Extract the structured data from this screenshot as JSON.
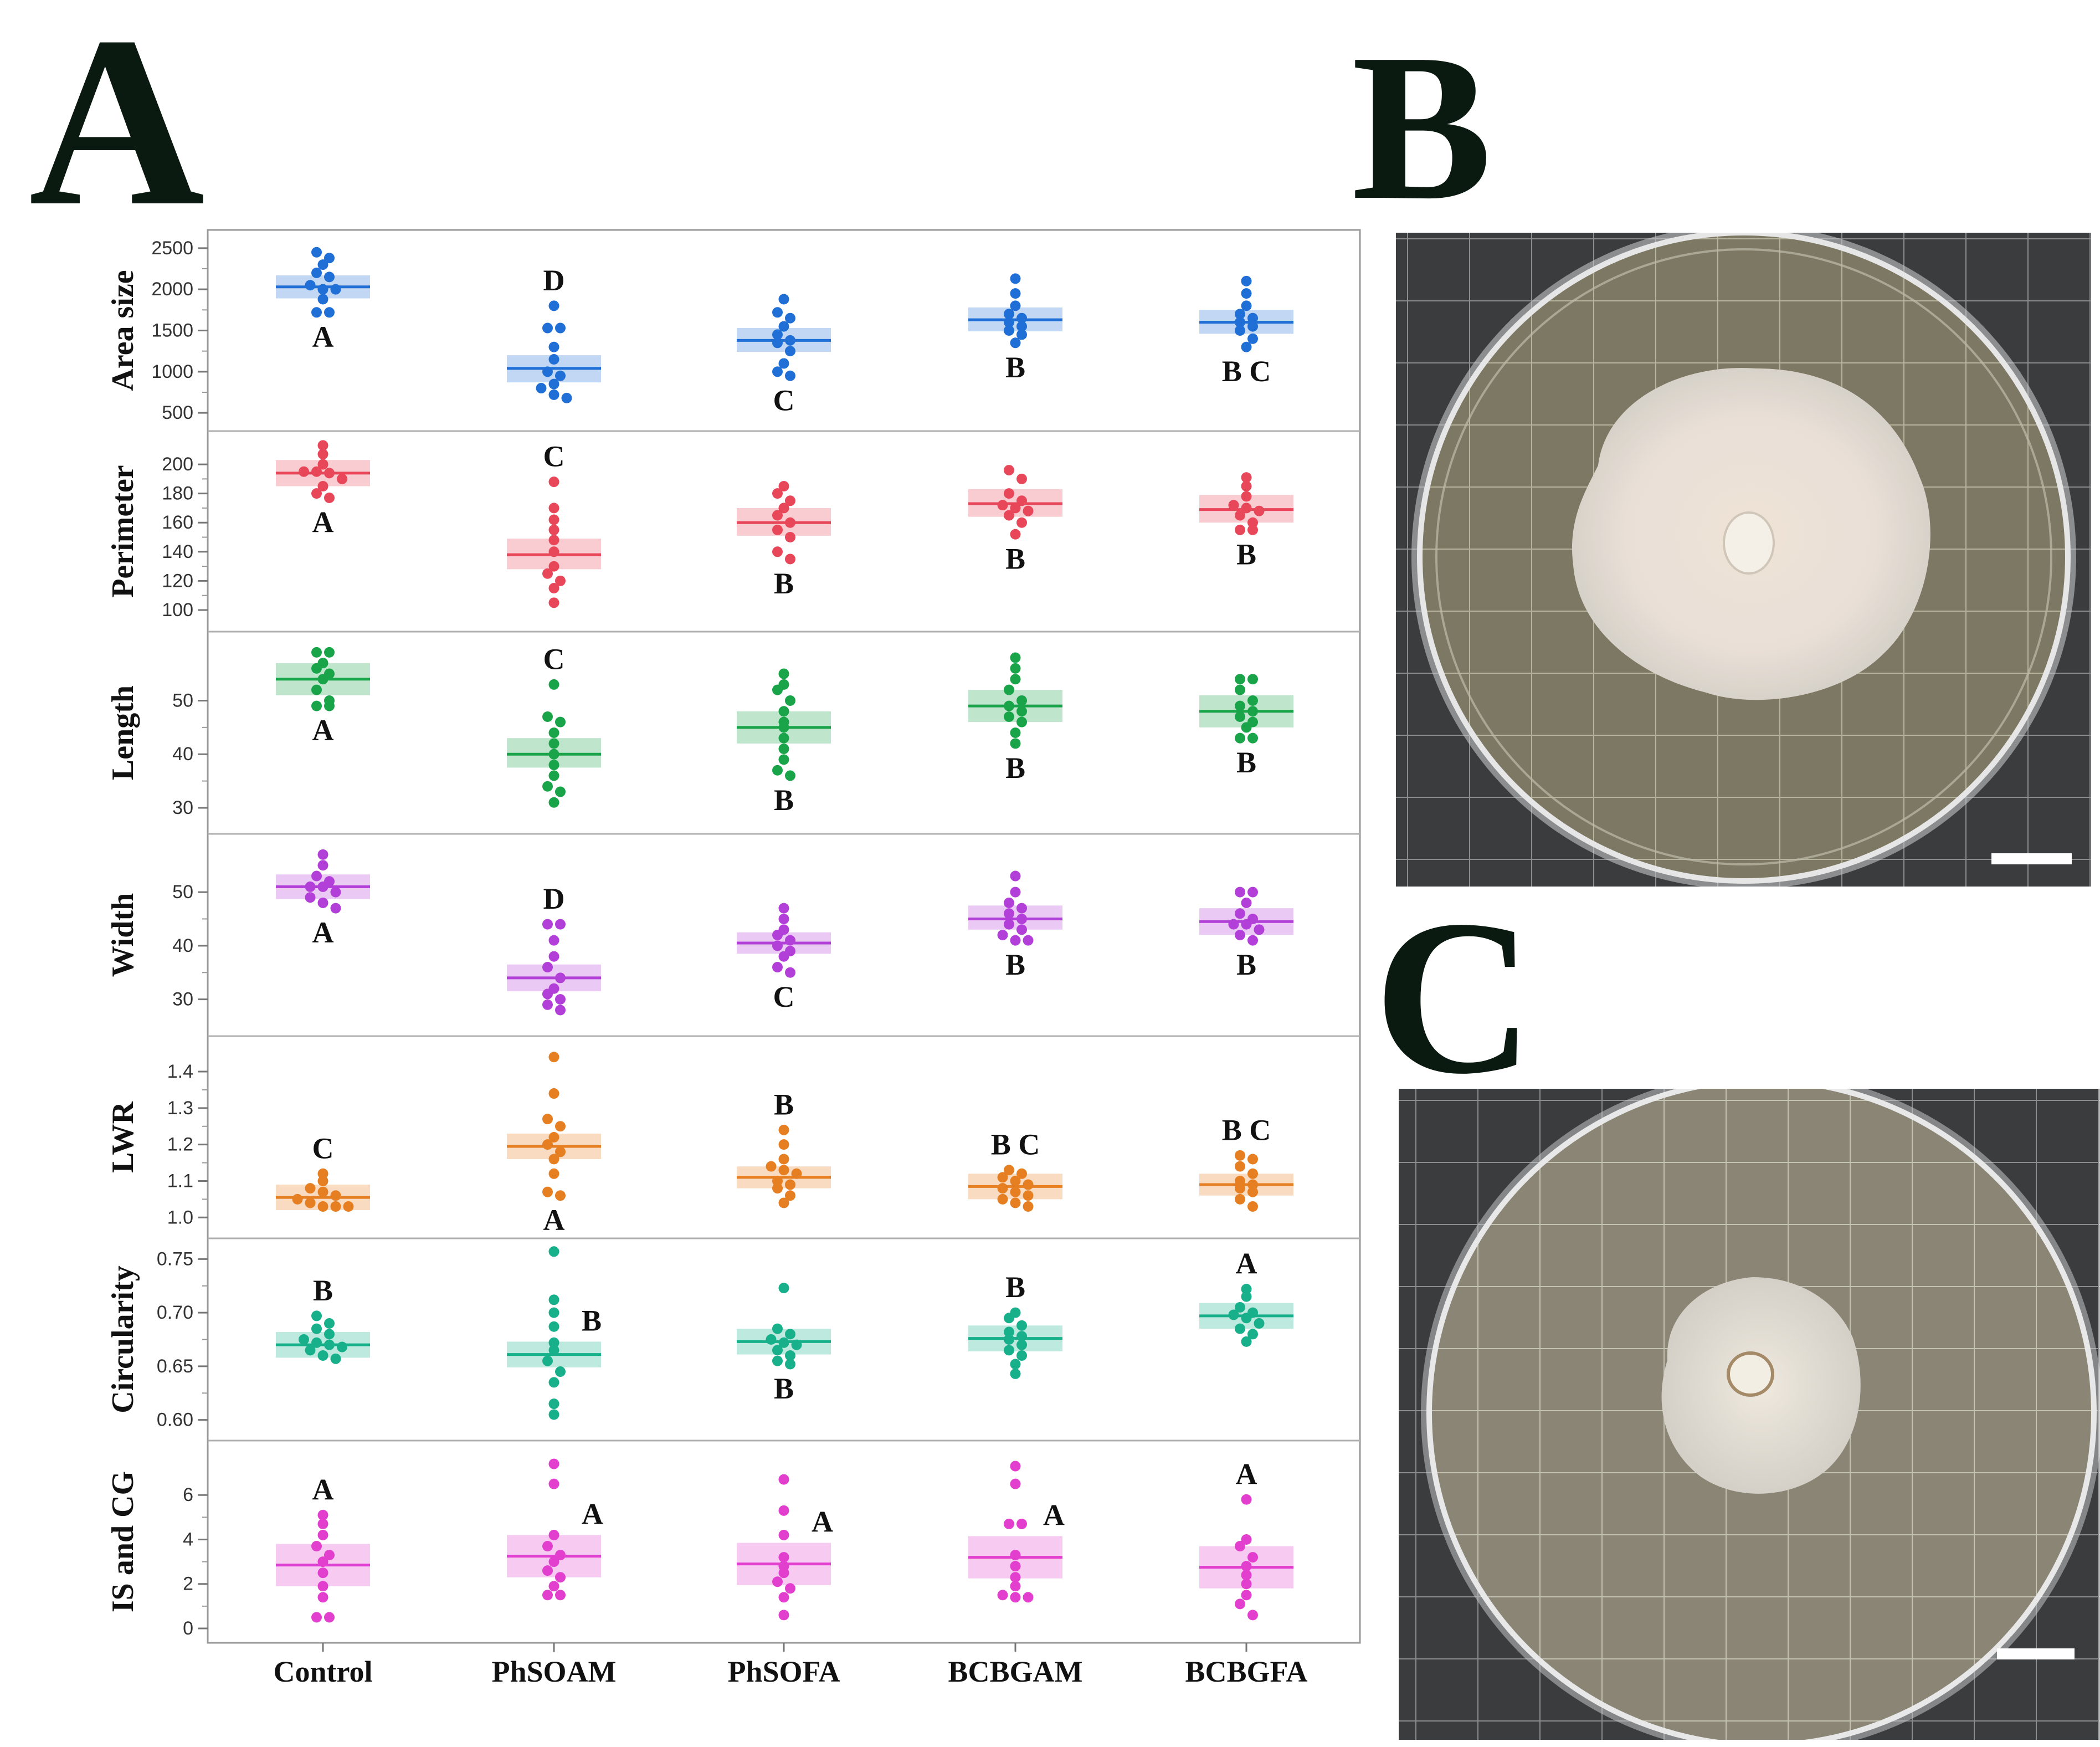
{
  "panel_letters": {
    "a": "A",
    "b": "B",
    "c": "C"
  },
  "colors": {
    "Area size": "#1f6fd6",
    "Perimeter": "#e8475a",
    "Length": "#1aa44a",
    "Width": "#b23fd8",
    "LWR": "#e67e22",
    "Circularity": "#17b08a",
    "IS and CG": "#e33fcf"
  },
  "chart_data": {
    "type": "scatter",
    "subtype": "grouped dot plot with mean line and confidence band, one row per trait",
    "categories": [
      "Control",
      "PhSOAM",
      "PhSOFA",
      "BCBGAM",
      "BCBGFA"
    ],
    "rows": [
      {
        "ylabel": "Area size",
        "yticks": [
          500,
          1000,
          1500,
          2000,
          2500
        ],
        "ylim": [
          400,
          2600
        ],
        "groups": [
          {
            "values": [
              2450,
              2380,
              2300,
              2200,
              2150,
              2050,
              2000,
              2000,
              1880,
              1720,
              1720
            ],
            "mean": 2030,
            "ci": [
              1890,
              2170
            ],
            "letter": "A",
            "letter_pos": "below"
          },
          {
            "values": [
              1800,
              1530,
              1530,
              1300,
              1150,
              1000,
              950,
              850,
              800,
              720,
              680
            ],
            "mean": 1040,
            "ci": [
              870,
              1200
            ],
            "letter": "D",
            "letter_pos": "above"
          },
          {
            "values": [
              1880,
              1720,
              1650,
              1550,
              1450,
              1380,
              1350,
              1250,
              1100,
              1000,
              950
            ],
            "mean": 1380,
            "ci": [
              1240,
              1530
            ],
            "letter": "C",
            "letter_pos": "below"
          },
          {
            "values": [
              2130,
              1950,
              1800,
              1700,
              1650,
              1600,
              1550,
              1500,
              1450,
              1350
            ],
            "mean": 1630,
            "ci": [
              1490,
              1780
            ],
            "letter": "B",
            "letter_pos": "below"
          },
          {
            "values": [
              2100,
              1950,
              1800,
              1700,
              1650,
              1600,
              1550,
              1500,
              1400,
              1300
            ],
            "mean": 1600,
            "ci": [
              1460,
              1750
            ],
            "letter": "B C",
            "letter_pos": "below"
          }
        ]
      },
      {
        "ylabel": "Perimeter",
        "yticks": [
          100,
          120,
          140,
          160,
          180,
          200
        ],
        "ylim": [
          92,
          216
        ],
        "groups": [
          {
            "values": [
              213,
              207,
              200,
              195,
              195,
              194,
              190,
              185,
              180,
              177
            ],
            "mean": 194,
            "ci": [
              185,
              203
            ],
            "letter": "A",
            "letter_pos": "below"
          },
          {
            "values": [
              188,
              170,
              162,
              155,
              148,
              140,
              130,
              125,
              120,
              115,
              105
            ],
            "mean": 138,
            "ci": [
              128,
              149
            ],
            "letter": "C",
            "letter_pos": "above"
          },
          {
            "values": [
              185,
              180,
              175,
              170,
              165,
              160,
              155,
              150,
              140,
              135
            ],
            "mean": 160,
            "ci": [
              151,
              170
            ],
            "letter": "B",
            "letter_pos": "below"
          },
          {
            "values": [
              196,
              190,
              180,
              175,
              172,
              170,
              168,
              165,
              160,
              152
            ],
            "mean": 173,
            "ci": [
              164,
              183
            ],
            "letter": "B",
            "letter_pos": "below"
          },
          {
            "values": [
              191,
              185,
              178,
              172,
              170,
              168,
              165,
              160,
              155,
              155
            ],
            "mean": 169,
            "ci": [
              160,
              179
            ],
            "letter": "B",
            "letter_pos": "below"
          }
        ]
      },
      {
        "ylabel": "Length",
        "yticks": [
          30,
          40,
          50
        ],
        "ylim": [
          27,
          61
        ],
        "groups": [
          {
            "values": [
              59,
              59,
              57,
              56,
              55,
              54,
              52,
              50,
              49,
              49
            ],
            "mean": 54,
            "ci": [
              51,
              57
            ],
            "letter": "A",
            "letter_pos": "below"
          },
          {
            "values": [
              53,
              47,
              46,
              44,
              42,
              40,
              38,
              36,
              34,
              33,
              31
            ],
            "mean": 40,
            "ci": [
              37.5,
              43
            ],
            "letter": "C",
            "letter_pos": "above"
          },
          {
            "values": [
              55,
              53,
              52,
              50,
              48,
              46,
              45,
              43,
              41,
              39,
              37,
              36
            ],
            "mean": 45,
            "ci": [
              42,
              48
            ],
            "letter": "B",
            "letter_pos": "below"
          },
          {
            "values": [
              58,
              56,
              54,
              52,
              50,
              49,
              48,
              47,
              46,
              44,
              42
            ],
            "mean": 49,
            "ci": [
              46,
              52
            ],
            "letter": "B",
            "letter_pos": "below"
          },
          {
            "values": [
              54,
              54,
              52,
              50,
              49,
              48,
              47,
              46,
              45,
              43,
              43
            ],
            "mean": 48,
            "ci": [
              45,
              51
            ],
            "letter": "B",
            "letter_pos": "below"
          }
        ]
      },
      {
        "ylabel": "Width",
        "yticks": [
          30,
          40,
          50
        ],
        "ylim": [
          25,
          59
        ],
        "groups": [
          {
            "values": [
              57,
              55,
              53,
              52,
              51,
              51,
              50,
              49,
              48,
              47
            ],
            "mean": 51,
            "ci": [
              48.7,
              53.3
            ],
            "letter": "A",
            "letter_pos": "below"
          },
          {
            "values": [
              44,
              44,
              41,
              38,
              36,
              34,
              32,
              31,
              30,
              29,
              28
            ],
            "mean": 34,
            "ci": [
              31.5,
              36.5
            ],
            "letter": "D",
            "letter_pos": "above"
          },
          {
            "values": [
              47,
              45,
              43,
              42,
              41,
              40,
              39,
              38,
              36,
              35
            ],
            "mean": 40.5,
            "ci": [
              38.5,
              42.5
            ],
            "letter": "C",
            "letter_pos": "below"
          },
          {
            "values": [
              53,
              50,
              48,
              47,
              46,
              45,
              44,
              43,
              42,
              41,
              41
            ],
            "mean": 45,
            "ci": [
              43,
              47.5
            ],
            "letter": "B",
            "letter_pos": "below"
          },
          {
            "values": [
              50,
              50,
              48,
              46,
              45,
              44,
              44,
              43,
              42,
              41
            ],
            "mean": 44.5,
            "ci": [
              42,
              47
            ],
            "letter": "B",
            "letter_pos": "below"
          }
        ]
      },
      {
        "ylabel": "LWR",
        "yticks": [
          1.0,
          1.1,
          1.2,
          1.3,
          1.4
        ],
        "yticklabels": [
          "1.0",
          "1.1",
          "1.2",
          "1.3",
          "1.4"
        ],
        "ylim": [
          0.97,
          1.47
        ],
        "groups": [
          {
            "values": [
              1.12,
              1.1,
              1.08,
              1.07,
              1.06,
              1.05,
              1.04,
              1.03,
              1.03,
              1.03
            ],
            "mean": 1.055,
            "ci": [
              1.02,
              1.09
            ],
            "letter": "C",
            "letter_pos": "above"
          },
          {
            "values": [
              1.44,
              1.34,
              1.27,
              1.25,
              1.22,
              1.2,
              1.18,
              1.16,
              1.12,
              1.07,
              1.06
            ],
            "mean": 1.195,
            "ci": [
              1.16,
              1.23
            ],
            "letter": "A",
            "letter_pos": "below"
          },
          {
            "values": [
              1.24,
              1.2,
              1.16,
              1.14,
              1.13,
              1.12,
              1.1,
              1.09,
              1.08,
              1.06,
              1.04
            ],
            "mean": 1.11,
            "ci": [
              1.08,
              1.14
            ],
            "letter": "B",
            "letter_pos": "above"
          },
          {
            "values": [
              1.13,
              1.12,
              1.11,
              1.1,
              1.09,
              1.08,
              1.07,
              1.06,
              1.05,
              1.04,
              1.03
            ],
            "mean": 1.085,
            "ci": [
              1.05,
              1.12
            ],
            "letter": "B C",
            "letter_pos": "above"
          },
          {
            "values": [
              1.17,
              1.16,
              1.14,
              1.12,
              1.1,
              1.09,
              1.08,
              1.07,
              1.05,
              1.03
            ],
            "mean": 1.09,
            "ci": [
              1.06,
              1.12
            ],
            "letter": "B C",
            "letter_pos": "above"
          }
        ]
      },
      {
        "ylabel": "Circularity",
        "yticks": [
          0.6,
          0.65,
          0.7,
          0.75
        ],
        "yticklabels": [
          "0.60",
          "0.65",
          "0.70",
          "0.75"
        ],
        "ylim": [
          0.59,
          0.76
        ],
        "groups": [
          {
            "values": [
              0.697,
              0.69,
              0.685,
              0.68,
              0.675,
              0.672,
              0.67,
              0.668,
              0.665,
              0.66,
              0.657
            ],
            "mean": 0.67,
            "ci": [
              0.658,
              0.682
            ],
            "letter": "B",
            "letter_pos": "above"
          },
          {
            "values": [
              0.757,
              0.712,
              0.7,
              0.687,
              0.672,
              0.665,
              0.655,
              0.645,
              0.635,
              0.615,
              0.605
            ],
            "mean": 0.661,
            "ci": [
              0.649,
              0.673
            ],
            "letter": "B",
            "letter_pos": "right"
          },
          {
            "values": [
              0.723,
              0.685,
              0.68,
              0.675,
              0.672,
              0.67,
              0.665,
              0.66,
              0.655,
              0.652
            ],
            "mean": 0.673,
            "ci": [
              0.661,
              0.685
            ],
            "letter": "B",
            "letter_pos": "below"
          },
          {
            "values": [
              0.7,
              0.695,
              0.688,
              0.682,
              0.678,
              0.675,
              0.67,
              0.665,
              0.66,
              0.652,
              0.643
            ],
            "mean": 0.676,
            "ci": [
              0.664,
              0.688
            ],
            "letter": "B",
            "letter_pos": "above"
          },
          {
            "values": [
              0.722,
              0.715,
              0.705,
              0.7,
              0.698,
              0.695,
              0.69,
              0.685,
              0.68,
              0.673
            ],
            "mean": 0.697,
            "ci": [
              0.685,
              0.709
            ],
            "letter": "A",
            "letter_pos": "above"
          }
        ]
      },
      {
        "ylabel": "IS and CG",
        "yticks": [
          0,
          2,
          4,
          6
        ],
        "ylim": [
          -0.2,
          8
        ],
        "groups": [
          {
            "values": [
              5.1,
              4.7,
              4.2,
              3.7,
              3.3,
              3.0,
              2.5,
              1.9,
              1.4,
              0.5,
              0.5
            ],
            "mean": 2.85,
            "ci": [
              1.9,
              3.8
            ],
            "letter": "A",
            "letter_pos": "above"
          },
          {
            "values": [
              7.4,
              6.5,
              4.2,
              3.7,
              3.3,
              3.0,
              2.6,
              2.3,
              1.9,
              1.5,
              1.5
            ],
            "mean": 3.25,
            "ci": [
              2.3,
              4.2
            ],
            "letter": "A",
            "letter_pos": "right"
          },
          {
            "values": [
              6.7,
              5.3,
              4.2,
              3.2,
              2.8,
              2.5,
              2.1,
              1.8,
              1.4,
              0.6
            ],
            "mean": 2.9,
            "ci": [
              1.95,
              3.85
            ],
            "letter": "A",
            "letter_pos": "right"
          },
          {
            "values": [
              7.3,
              6.5,
              4.7,
              4.7,
              3.3,
              2.8,
              2.3,
              1.9,
              1.5,
              1.4,
              1.4
            ],
            "mean": 3.2,
            "ci": [
              2.25,
              4.15
            ],
            "letter": "A",
            "letter_pos": "right"
          },
          {
            "values": [
              5.8,
              4.0,
              3.7,
              3.2,
              2.8,
              2.4,
              2.0,
              1.5,
              1.1,
              0.6
            ],
            "mean": 2.75,
            "ci": [
              1.8,
              3.7
            ],
            "letter": "A",
            "letter_pos": "above"
          }
        ]
      }
    ]
  }
}
